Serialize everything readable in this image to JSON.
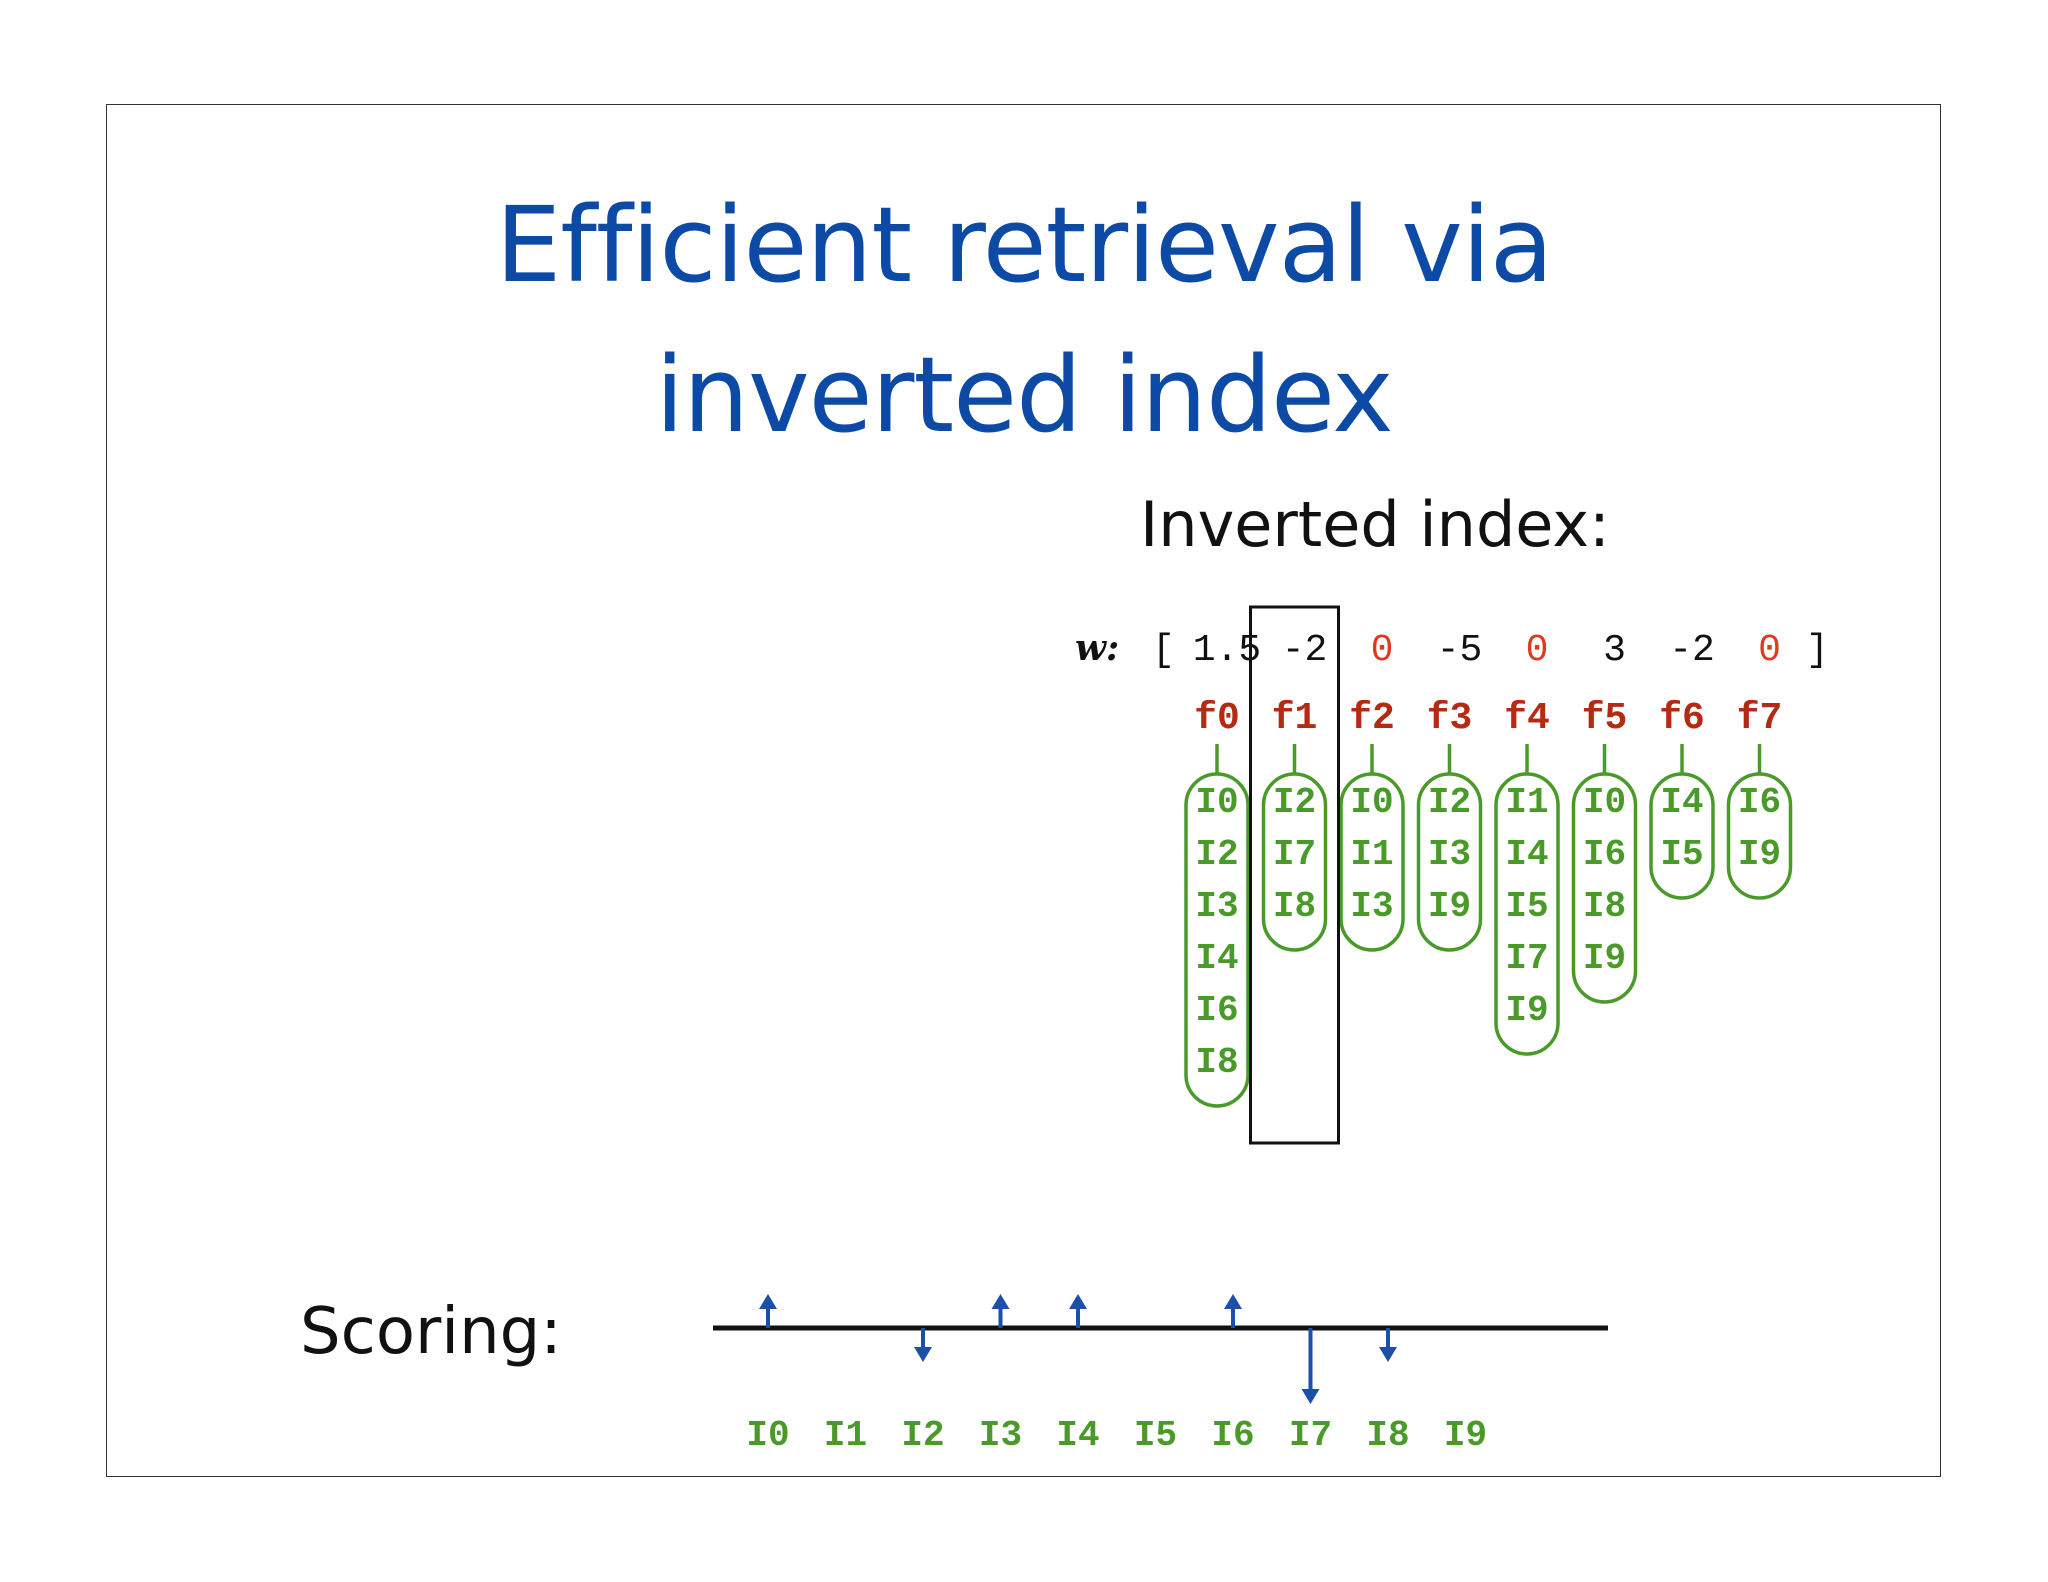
{
  "title": {
    "line1": "Efficient retrieval via",
    "line2": "inverted index"
  },
  "inverted_index_label": "Inverted index:",
  "scoring_label": "Scoring:",
  "weights": {
    "prefix": "w:",
    "open_bracket": "[",
    "close_bracket": "]",
    "values": [
      "1.5",
      "-2",
      "0",
      "-5",
      "0",
      "3",
      "-2",
      "0"
    ],
    "highlighted_index": 1
  },
  "features": [
    "f0",
    "f1",
    "f2",
    "f3",
    "f4",
    "f5",
    "f6",
    "f7"
  ],
  "postings": [
    [
      "I0",
      "I2",
      "I3",
      "I4",
      "I6",
      "I8"
    ],
    [
      "I2",
      "I7",
      "I8"
    ],
    [
      "I0",
      "I1",
      "I3"
    ],
    [
      "I2",
      "I3",
      "I9"
    ],
    [
      "I1",
      "I4",
      "I5",
      "I7",
      "I9"
    ],
    [
      "I0",
      "I6",
      "I8",
      "I9"
    ],
    [
      "I4",
      "I5"
    ],
    [
      "I6",
      "I9"
    ]
  ],
  "scoring": {
    "items": [
      "I0",
      "I1",
      "I2",
      "I3",
      "I4",
      "I5",
      "I6",
      "I7",
      "I8",
      "I9"
    ],
    "arrows": [
      {
        "item": "I0",
        "direction": "up",
        "magnitude": 1
      },
      {
        "item": "I2",
        "direction": "down",
        "magnitude": 1
      },
      {
        "item": "I3",
        "direction": "up",
        "magnitude": 1
      },
      {
        "item": "I4",
        "direction": "up",
        "magnitude": 1
      },
      {
        "item": "I6",
        "direction": "up",
        "magnitude": 1
      },
      {
        "item": "I7",
        "direction": "down",
        "magnitude": 2
      },
      {
        "item": "I8",
        "direction": "down",
        "magnitude": 1
      }
    ]
  },
  "colors": {
    "title": "#0d4aa6",
    "feature": "#b52a12",
    "zero_weight": "#e03a1e",
    "posting": "#4a9a2a",
    "arrow": "#1b4fa8",
    "text": "#111111"
  }
}
